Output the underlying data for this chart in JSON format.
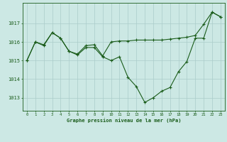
{
  "title": "Graphe pression niveau de la mer (hPa)",
  "background_color": "#cce8e4",
  "grid_color": "#aaccca",
  "line_color": "#1a5c1a",
  "xlim": [
    -0.5,
    23.5
  ],
  "ylim": [
    1012.3,
    1018.1
  ],
  "yticks": [
    1013,
    1014,
    1015,
    1016,
    1017
  ],
  "xticks": [
    0,
    1,
    2,
    3,
    4,
    5,
    6,
    7,
    8,
    9,
    10,
    11,
    12,
    13,
    14,
    15,
    16,
    17,
    18,
    19,
    20,
    21,
    22,
    23
  ],
  "series1": [
    1015.0,
    1016.0,
    1015.8,
    1016.5,
    1016.2,
    1015.5,
    1015.3,
    1015.7,
    1015.7,
    1015.2,
    1015.0,
    1015.2,
    1014.1,
    1013.6,
    1012.75,
    1013.0,
    1013.35,
    1013.55,
    1014.4,
    1014.95,
    1016.2,
    1016.2,
    1017.6,
    1017.35
  ],
  "series2": [
    1015.0,
    1016.0,
    1015.85,
    1016.5,
    1016.2,
    1015.5,
    1015.35,
    1015.8,
    1015.85,
    1015.25,
    1016.0,
    1016.05,
    1016.05,
    1016.1,
    1016.1,
    1016.1,
    1016.1,
    1016.15,
    1016.2,
    1016.25,
    1016.35,
    1016.95,
    1017.6,
    1017.35
  ],
  "marker": "+",
  "markersize": 3,
  "linewidth": 0.8
}
